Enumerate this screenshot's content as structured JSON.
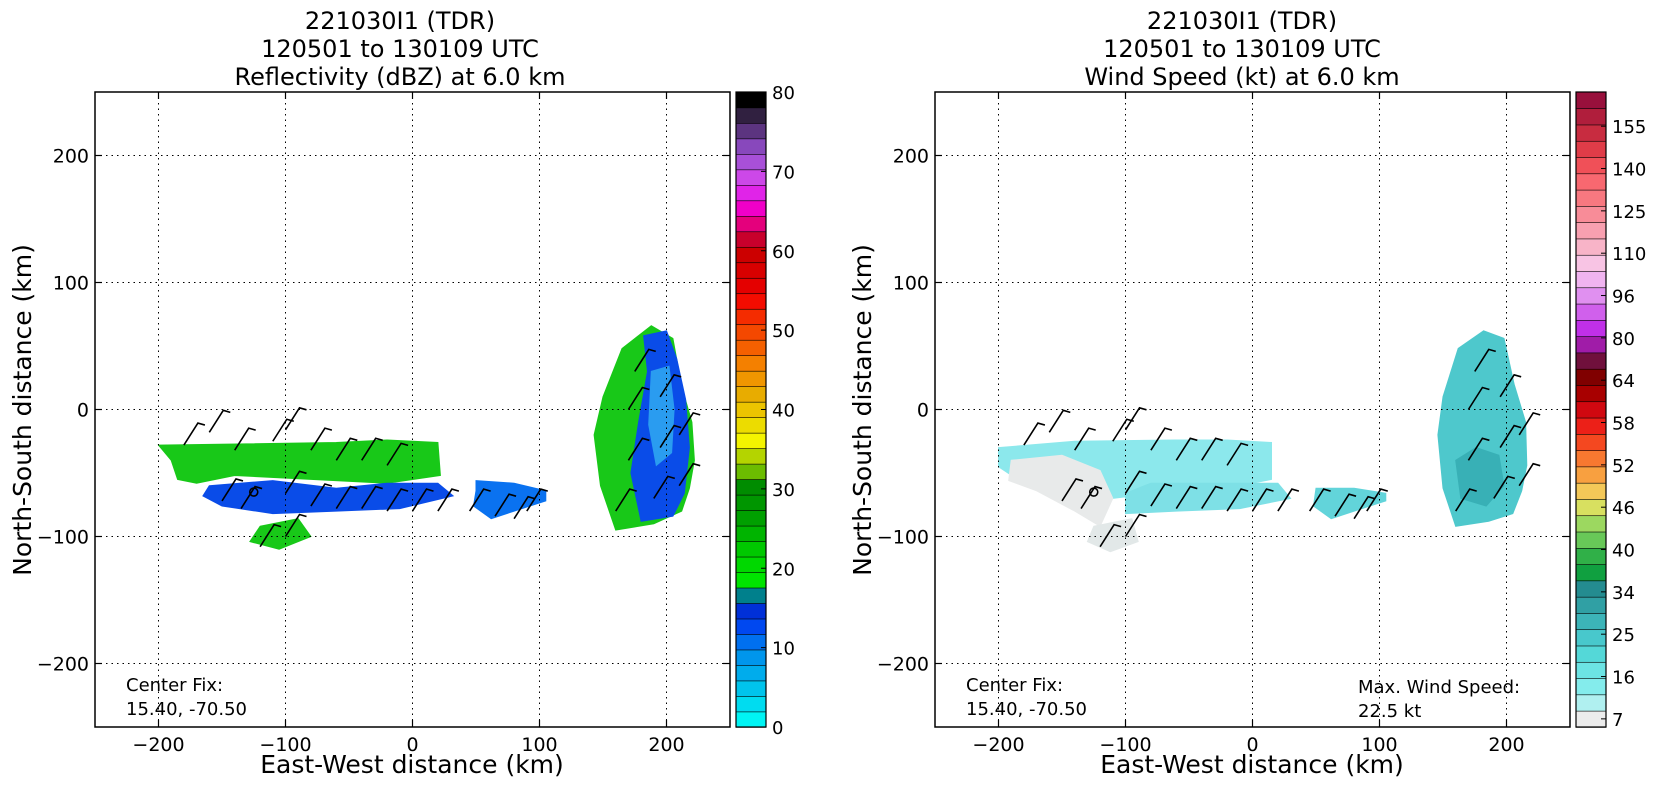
{
  "chart_data": [
    {
      "type": "heatmap",
      "title": [
        "221030I1 (TDR)",
        "120501 to 130109 UTC",
        "Reflectivity (dBZ) at 6.0 km"
      ],
      "xlabel": "East-West distance (km)",
      "ylabel": "North-South distance (km)",
      "xlim": [
        -250,
        250
      ],
      "ylim": [
        -250,
        250
      ],
      "xticks": [
        -200,
        -100,
        0,
        100,
        200
      ],
      "yticks": [
        -200,
        -100,
        0,
        100,
        200
      ],
      "xtick_labels": [
        "−200",
        "−100",
        "0",
        "100",
        "200"
      ],
      "ytick_labels": [
        "−200",
        "−100",
        "0",
        "100",
        "200"
      ],
      "grid": true,
      "colorbar": {
        "min": 0,
        "max": 80,
        "ticks": [
          0,
          10,
          20,
          30,
          40,
          50,
          60,
          70,
          80
        ],
        "tick_labels": [
          "0",
          "10",
          "20",
          "30",
          "40",
          "50",
          "60",
          "70",
          "80"
        ],
        "colors": [
          "#00f4f4",
          "#00dcf0",
          "#00c4ec",
          "#00acec",
          "#0096ec",
          "#0070f0",
          "#0048f0",
          "#0030d8",
          "#00808c",
          "#00e400",
          "#00d800",
          "#00c800",
          "#00b400",
          "#00a000",
          "#009600",
          "#008c00",
          "#6cbc00",
          "#b4d400",
          "#f4f400",
          "#ecdc00",
          "#ecc400",
          "#e8ac00",
          "#f09600",
          "#f48000",
          "#f46000",
          "#f44800",
          "#f42c00",
          "#f40c00",
          "#e40000",
          "#d80000",
          "#cc0000",
          "#c8002c",
          "#e4007c",
          "#f000c8",
          "#e024e8",
          "#cc48e8",
          "#a850d8",
          "#8848bc",
          "#5c3480",
          "#302040",
          "#000000"
        ]
      },
      "center_fix_label": "Center Fix:",
      "center_fix_value": "15.40, -70.50",
      "regions": [
        {
          "name": "west band north",
          "color": "#18c818",
          "points": [
            [
              -200,
              -28
            ],
            [
              -60,
              -26
            ],
            [
              -20,
              -24
            ],
            [
              20,
              -26
            ],
            [
              22,
              -52
            ],
            [
              -20,
              -58
            ],
            [
              -80,
              -55
            ],
            [
              -140,
              -52
            ],
            [
              -170,
              -58
            ],
            [
              -185,
              -55
            ],
            [
              -190,
              -40
            ]
          ]
        },
        {
          "name": "west band south",
          "color": "#0a4ce8",
          "points": [
            [
              -160,
              -60
            ],
            [
              -110,
              -56
            ],
            [
              -60,
              -62
            ],
            [
              -20,
              -58
            ],
            [
              20,
              -58
            ],
            [
              32,
              -68
            ],
            [
              -10,
              -78
            ],
            [
              -60,
              -80
            ],
            [
              -110,
              -82
            ],
            [
              -150,
              -76
            ],
            [
              -165,
              -68
            ]
          ]
        },
        {
          "name": "southern fragment",
          "color": "#18c818",
          "points": [
            [
              -120,
              -92
            ],
            [
              -90,
              -86
            ],
            [
              -80,
              -100
            ],
            [
              -105,
              -110
            ],
            [
              -128,
              -104
            ]
          ]
        },
        {
          "name": "middle band",
          "color": "#0a72f0",
          "points": [
            [
              50,
              -56
            ],
            [
              80,
              -58
            ],
            [
              105,
              -64
            ],
            [
              105,
              -72
            ],
            [
              80,
              -80
            ],
            [
              62,
              -86
            ],
            [
              48,
              -76
            ],
            [
              50,
              -64
            ]
          ]
        },
        {
          "name": "east cell green",
          "color": "#18c818",
          "points": [
            [
              150,
              10
            ],
            [
              165,
              48
            ],
            [
              188,
              66
            ],
            [
              205,
              56
            ],
            [
              212,
              18
            ],
            [
              220,
              -10
            ],
            [
              222,
              -40
            ],
            [
              218,
              -62
            ],
            [
              212,
              -80
            ],
            [
              190,
              -90
            ],
            [
              160,
              -95
            ],
            [
              148,
              -60
            ],
            [
              143,
              -20
            ]
          ]
        },
        {
          "name": "east cell blue",
          "color": "#0a4ce8",
          "points": [
            [
              182,
              58
            ],
            [
              200,
              62
            ],
            [
              208,
              40
            ],
            [
              215,
              8
            ],
            [
              218,
              -30
            ],
            [
              214,
              -66
            ],
            [
              205,
              -84
            ],
            [
              180,
              -88
            ],
            [
              172,
              -50
            ],
            [
              178,
              -10
            ],
            [
              185,
              30
            ]
          ]
        },
        {
          "name": "east cell light blue",
          "color": "#2a9cf0",
          "points": [
            [
              188,
              30
            ],
            [
              202,
              34
            ],
            [
              206,
              0
            ],
            [
              204,
              -34
            ],
            [
              192,
              -44
            ],
            [
              186,
              -12
            ]
          ]
        }
      ]
    },
    {
      "type": "heatmap",
      "title": [
        "221030I1 (TDR)",
        "120501 to 130109 UTC",
        "Wind Speed (kt) at 6.0 km"
      ],
      "xlabel": "East-West distance (km)",
      "ylabel": "North-South distance (km)",
      "xlim": [
        -250,
        250
      ],
      "ylim": [
        -250,
        250
      ],
      "xticks": [
        -200,
        -100,
        0,
        100,
        200
      ],
      "yticks": [
        -200,
        -100,
        0,
        100,
        200
      ],
      "xtick_labels": [
        "−200",
        "−100",
        "0",
        "100",
        "200"
      ],
      "ytick_labels": [
        "−200",
        "−100",
        "0",
        "100",
        "200"
      ],
      "grid": true,
      "colorbar": {
        "ticks": [
          "7",
          "16",
          "25",
          "34",
          "40",
          "46",
          "52",
          "58",
          "64",
          "80",
          "96",
          "110",
          "125",
          "140",
          "155"
        ],
        "colors": [
          "#ececec",
          "#b0f0f0",
          "#84ecec",
          "#6ce4e4",
          "#54d8d8",
          "#48c8cc",
          "#3cb4b8",
          "#30a0a4",
          "#248c90",
          "#10a040",
          "#30b048",
          "#68c858",
          "#9cd860",
          "#d8e060",
          "#f4c858",
          "#f8a040",
          "#f87830",
          "#f44820",
          "#ec2018",
          "#d00810",
          "#a80000",
          "#800000",
          "#70103c",
          "#a01ca8",
          "#c030e8",
          "#d060ec",
          "#e090f0",
          "#f0b4f0",
          "#f8c4e4",
          "#f8b4c8",
          "#f8a0b0",
          "#f88c98",
          "#f87880",
          "#f86870",
          "#f05058",
          "#e03c48",
          "#c82c40",
          "#b01e3c",
          "#98103c"
        ]
      },
      "center_fix_label": "Center Fix:",
      "center_fix_value": "15.40, -70.50",
      "max_wind_label": "Max. Wind Speed:",
      "max_wind_value": "22.5 kt",
      "regions": [
        {
          "name": "west band",
          "color": "#8ce8ec",
          "points": [
            [
              -200,
              -30
            ],
            [
              -140,
              -25
            ],
            [
              -60,
              -24
            ],
            [
              -20,
              -24
            ],
            [
              15,
              -26
            ],
            [
              15,
              -55
            ],
            [
              -20,
              -62
            ],
            [
              -60,
              -64
            ],
            [
              -110,
              -70
            ],
            [
              -150,
              -66
            ],
            [
              -185,
              -55
            ],
            [
              -200,
              -45
            ]
          ]
        },
        {
          "name": "west light",
          "color": "#e8eaea",
          "points": [
            [
              -190,
              -40
            ],
            [
              -150,
              -36
            ],
            [
              -120,
              -48
            ],
            [
              -110,
              -70
            ],
            [
              -120,
              -92
            ],
            [
              -140,
              -80
            ],
            [
              -170,
              -64
            ],
            [
              -192,
              -56
            ]
          ]
        },
        {
          "name": "west band south",
          "color": "#7ee0e6",
          "points": [
            [
              -80,
              -58
            ],
            [
              20,
              -58
            ],
            [
              30,
              -70
            ],
            [
              -10,
              -78
            ],
            [
              -60,
              -80
            ],
            [
              -100,
              -82
            ],
            [
              -100,
              -66
            ]
          ]
        },
        {
          "name": "southern fragment",
          "color": "#e2e8e8",
          "points": [
            [
              -125,
              -92
            ],
            [
              -95,
              -86
            ],
            [
              -90,
              -104
            ],
            [
              -112,
              -112
            ],
            [
              -130,
              -104
            ]
          ]
        },
        {
          "name": "middle band",
          "color": "#62d4da",
          "points": [
            [
              50,
              -62
            ],
            [
              80,
              -62
            ],
            [
              105,
              -66
            ],
            [
              105,
              -72
            ],
            [
              80,
              -80
            ],
            [
              62,
              -86
            ],
            [
              48,
              -76
            ]
          ]
        },
        {
          "name": "east cell",
          "color": "#4ec8cc",
          "points": [
            [
              150,
              10
            ],
            [
              162,
              48
            ],
            [
              182,
              62
            ],
            [
              198,
              56
            ],
            [
              206,
              20
            ],
            [
              215,
              -10
            ],
            [
              216,
              -44
            ],
            [
              212,
              -64
            ],
            [
              205,
              -82
            ],
            [
              186,
              -88
            ],
            [
              160,
              -92
            ],
            [
              150,
              -62
            ],
            [
              146,
              -20
            ]
          ]
        },
        {
          "name": "east cell core",
          "color": "#38b0b6",
          "points": [
            [
              160,
              -40
            ],
            [
              176,
              -30
            ],
            [
              194,
              -36
            ],
            [
              198,
              -60
            ],
            [
              184,
              -76
            ],
            [
              164,
              -70
            ]
          ]
        }
      ]
    }
  ]
}
